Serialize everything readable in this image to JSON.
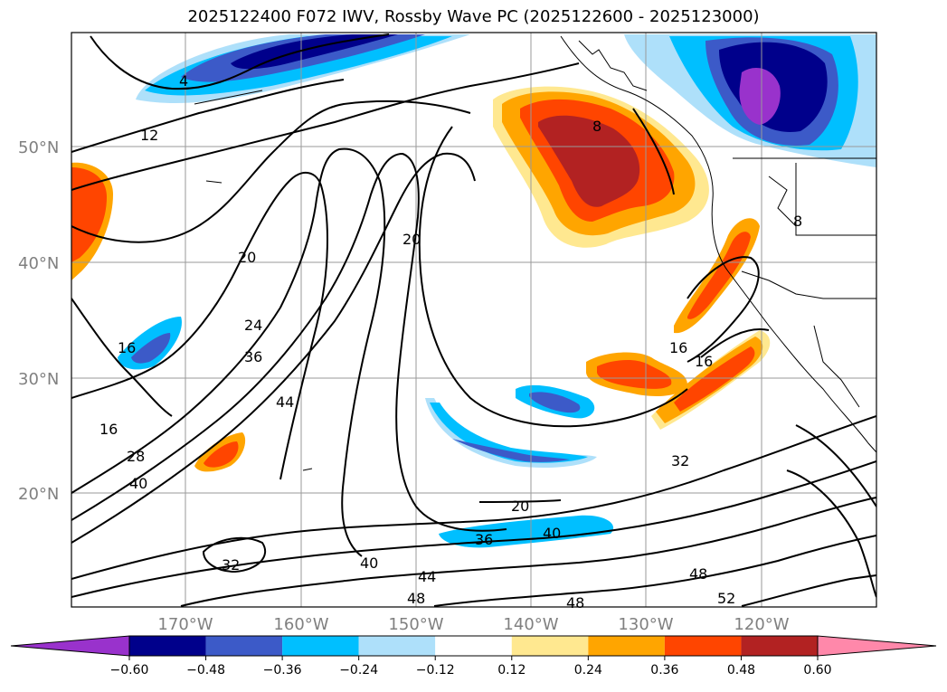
{
  "title": "2025122400 F072 IWV, Rossby Wave PC (2025122600 - 2025123000)",
  "lat_labels": [
    "50°N",
    "40°N",
    "30°N",
    "20°N"
  ],
  "lon_labels": [
    "170°W",
    "160°W",
    "150°W",
    "140°W",
    "130°W",
    "120°W"
  ],
  "colorbar": {
    "ticks": [
      "−0.60",
      "−0.48",
      "−0.36",
      "−0.24",
      "−0.12",
      "0.12",
      "0.24",
      "0.36",
      "0.48",
      "0.60"
    ],
    "colors": [
      "#9932cc",
      "#00008b",
      "#3c5ac8",
      "#00bfff",
      "#aee0fa",
      "#ffffff",
      "#ffe890",
      "#ffa500",
      "#ff4500",
      "#b22222",
      "#ff88aa"
    ]
  },
  "colors": {
    "neg_strong": "#00008b",
    "neg_mid": "#3c5ac8",
    "neg_light": "#00bfff",
    "neg_pale": "#aee0fa",
    "pos_pale": "#ffe890",
    "pos_mid": "#ffa500",
    "pos_strong": "#ff4500",
    "pos_max": "#b22222",
    "purple": "#9932cc"
  },
  "contour_labels": [
    "4",
    "12",
    "20",
    "20",
    "24",
    "36",
    "44",
    "16",
    "16",
    "28",
    "40",
    "32",
    "40",
    "44",
    "48",
    "48",
    "52",
    "48",
    "20",
    "36",
    "40",
    "32",
    "16",
    "16",
    "8",
    "8"
  ]
}
